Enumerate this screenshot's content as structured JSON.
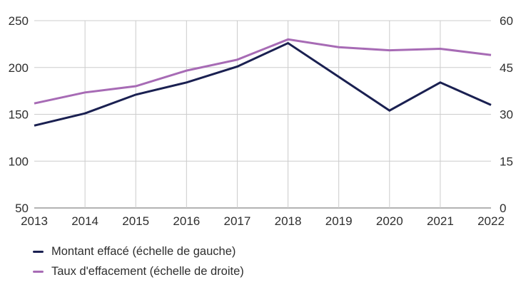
{
  "chart_data": {
    "type": "line",
    "categories": [
      "2013",
      "2014",
      "2015",
      "2016",
      "2017",
      "2018",
      "2019",
      "2020",
      "2021",
      "2022"
    ],
    "series": [
      {
        "name": "Montant effacé (échelle de gauche)",
        "axis": "left",
        "color": "#1a2051",
        "values": [
          138,
          151,
          171,
          184,
          201,
          226,
          190,
          154,
          184,
          160
        ]
      },
      {
        "name": "Taux d'effacement (échelle de droite)",
        "axis": "right",
        "color": "#a76bb5",
        "values": [
          33.5,
          37,
          39,
          44,
          47.5,
          54,
          51.5,
          50.5,
          51,
          49
        ]
      }
    ],
    "left_axis": {
      "min": 50,
      "max": 250,
      "ticks": [
        250,
        200,
        150,
        100,
        50
      ]
    },
    "right_axis": {
      "min": 0,
      "max": 60,
      "ticks": [
        60,
        45,
        30,
        15,
        0
      ]
    },
    "grid": true,
    "legend_position": "bottom-left",
    "colors": {
      "grid": "#cccccc",
      "axis": "#9a9a9a",
      "tick_label": "#2e2e2e"
    }
  }
}
